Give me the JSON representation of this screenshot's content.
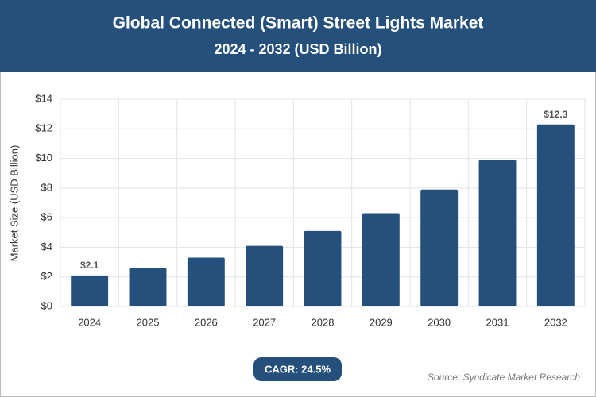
{
  "chart_data": {
    "type": "bar",
    "title": "Global Connected (Smart) Street Lights Market",
    "subtitle": "2024 - 2032 (USD Billion)",
    "y_label": "Market Size (USD Billion)",
    "categories": [
      "2024",
      "2025",
      "2026",
      "2027",
      "2028",
      "2029",
      "2030",
      "2031",
      "2032"
    ],
    "values": [
      2.1,
      2.6,
      3.3,
      4.1,
      5.1,
      6.3,
      7.9,
      9.9,
      12.3
    ],
    "value_labels": [
      "$2.1",
      null,
      null,
      null,
      null,
      null,
      null,
      null,
      "$12.3"
    ],
    "color": "#26507c",
    "ylim": [
      0,
      14
    ],
    "yticks": [
      {
        "value": 0,
        "label": "$0"
      },
      {
        "value": 2,
        "label": "$2"
      },
      {
        "value": 4,
        "label": "$4"
      },
      {
        "value": 6,
        "label": "$6"
      },
      {
        "value": 8,
        "label": "$8"
      },
      {
        "value": 10,
        "label": "$10"
      },
      {
        "value": 12,
        "label": "$12"
      },
      {
        "value": 14,
        "label": "$14"
      }
    ],
    "grid": true,
    "cagr": "CAGR: 24.5%",
    "source": "Source: Syndicate Market Research"
  }
}
